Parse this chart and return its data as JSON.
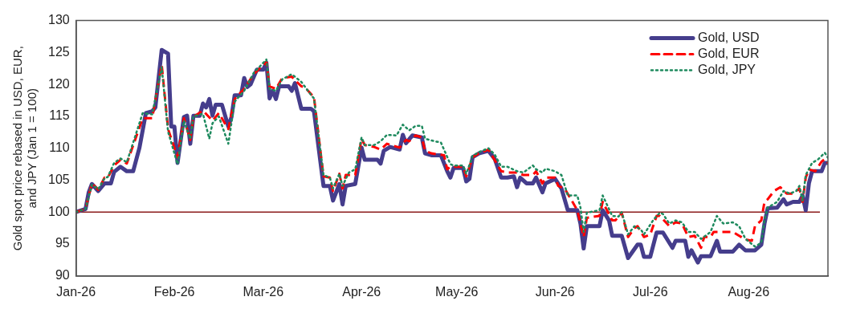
{
  "chart_data": {
    "type": "line",
    "ylabel": "Gold spot price rebased in USD, EUR, and JPY (Jan 1 = 100)",
    "xlim": [
      "2026-01-01",
      "2026-08-26"
    ],
    "xticks": [
      {
        "value": "2026-01-01",
        "label": "Jan-26"
      },
      {
        "value": "2026-02-01",
        "label": "Feb-26"
      },
      {
        "value": "2026-03-01",
        "label": "Mar-26"
      },
      {
        "value": "2026-04-01",
        "label": "Apr-26"
      },
      {
        "value": "2026-05-01",
        "label": "May-26"
      },
      {
        "value": "2026-06-01",
        "label": "Jun-26"
      },
      {
        "value": "2026-07-01",
        "label": "Jul-26"
      },
      {
        "value": "2026-08-01",
        "label": "Aug-26"
      }
    ],
    "ylim": [
      90,
      130
    ],
    "yticks": [
      90,
      95,
      100,
      105,
      110,
      115,
      120,
      125,
      130
    ],
    "grid": false,
    "legend": "top right",
    "ref_lines": [
      {
        "axis": "y",
        "value": 100,
        "color": "#8b1a1a"
      }
    ],
    "series": [
      {
        "name": "Gold, USD",
        "color": "#453d8c",
        "line_style": "solid",
        "x": [
          "2026-01-01",
          "2026-01-04",
          "2026-01-05",
          "2026-01-06",
          "2026-01-08",
          "2026-01-10",
          "2026-01-12",
          "2026-01-13",
          "2026-01-15",
          "2026-01-17",
          "2026-01-19",
          "2026-01-21",
          "2026-01-23",
          "2026-01-25",
          "2026-01-26",
          "2026-01-28",
          "2026-01-30",
          "2026-01-31",
          "2026-02-01",
          "2026-02-02",
          "2026-02-04",
          "2026-02-05",
          "2026-02-06",
          "2026-02-07",
          "2026-02-09",
          "2026-02-10",
          "2026-02-11",
          "2026-02-12",
          "2026-02-13",
          "2026-02-14",
          "2026-02-16",
          "2026-02-18",
          "2026-02-19",
          "2026-02-20",
          "2026-02-22",
          "2026-02-23",
          "2026-02-24",
          "2026-02-25",
          "2026-02-27",
          "2026-03-01",
          "2026-03-02",
          "2026-03-03",
          "2026-03-04",
          "2026-03-05",
          "2026-03-06",
          "2026-03-09",
          "2026-03-10",
          "2026-03-11",
          "2026-03-13",
          "2026-03-16",
          "2026-03-17",
          "2026-03-20",
          "2026-03-22",
          "2026-03-23",
          "2026-03-25",
          "2026-03-26",
          "2026-03-27",
          "2026-03-30",
          "2026-04-01",
          "2026-04-02",
          "2026-04-06",
          "2026-04-07",
          "2026-04-08",
          "2026-04-10",
          "2026-04-13",
          "2026-04-14",
          "2026-04-15",
          "2026-04-17",
          "2026-04-20",
          "2026-04-21",
          "2026-04-23",
          "2026-04-26",
          "2026-04-28",
          "2026-04-29",
          "2026-04-30",
          "2026-05-03",
          "2026-05-04",
          "2026-05-05",
          "2026-05-06",
          "2026-05-08",
          "2026-05-11",
          "2026-05-13",
          "2026-05-15",
          "2026-05-17",
          "2026-05-19",
          "2026-05-20",
          "2026-05-21",
          "2026-05-23",
          "2026-05-25",
          "2026-05-26",
          "2026-05-28",
          "2026-05-29",
          "2026-06-01",
          "2026-06-03",
          "2026-06-05",
          "2026-06-08",
          "2026-06-09",
          "2026-06-10",
          "2026-06-11",
          "2026-06-15",
          "2026-06-16",
          "2026-06-18",
          "2026-06-19",
          "2026-06-22",
          "2026-06-24",
          "2026-06-27",
          "2026-06-28",
          "2026-06-29",
          "2026-07-01",
          "2026-07-03",
          "2026-07-05",
          "2026-07-08",
          "2026-07-09",
          "2026-07-12",
          "2026-07-13",
          "2026-07-14",
          "2026-07-16",
          "2026-07-17",
          "2026-07-20",
          "2026-07-22",
          "2026-07-23",
          "2026-07-27",
          "2026-07-29",
          "2026-07-31",
          "2026-08-03",
          "2026-08-05",
          "2026-08-06",
          "2026-08-07",
          "2026-08-10",
          "2026-08-12",
          "2026-08-13",
          "2026-08-15",
          "2026-08-17",
          "2026-08-18",
          "2026-08-19",
          "2026-08-20",
          "2026-08-21",
          "2026-08-24",
          "2026-08-25",
          "2026-08-26"
        ],
        "values": [
          100,
          100.5,
          103.1,
          104.4,
          103.3,
          104.5,
          104.5,
          106.3,
          107.1,
          106.4,
          106.4,
          110.1,
          115.5,
          115.8,
          116.4,
          125.4,
          124.8,
          113.4,
          113.4,
          107.7,
          114.9,
          115.1,
          110.7,
          115.1,
          115.1,
          117,
          116.4,
          117.7,
          115.1,
          116.8,
          116.8,
          113.4,
          114.9,
          118.3,
          118.3,
          121,
          119.6,
          120,
          122.3,
          122.3,
          123.4,
          117.8,
          119,
          117.7,
          119.7,
          119.7,
          119,
          120.2,
          116.2,
          116.2,
          115.8,
          104.1,
          104.1,
          101.8,
          104.4,
          101.2,
          104.1,
          104.4,
          110.1,
          108.2,
          108.2,
          107.6,
          109.6,
          110.2,
          109.8,
          112.1,
          110.8,
          112,
          111.7,
          109.2,
          108.9,
          108.9,
          106.4,
          105.4,
          106.9,
          106.9,
          104.8,
          105.2,
          108.6,
          109.2,
          109.6,
          108.3,
          105.4,
          105.4,
          105.6,
          103.9,
          105.4,
          104.5,
          104.5,
          105.4,
          103.1,
          104.5,
          105.2,
          103.7,
          100.3,
          100.3,
          98.2,
          94.3,
          97.8,
          97.8,
          100.3,
          98.7,
          96.3,
          96.3,
          92.8,
          94.9,
          94.9,
          93,
          93,
          96.8,
          96.8,
          94.4,
          95.5,
          95.5,
          93,
          94,
          92.1,
          93.1,
          93.1,
          95.5,
          93.8,
          93.8,
          94.9,
          94,
          94,
          94.9,
          98.2,
          100.6,
          100.7,
          102,
          101.2,
          101.6,
          101.6,
          102.6,
          100.3,
          104.5,
          106.4,
          106.4,
          107.7,
          107.7
        ]
      },
      {
        "name": "Gold, EUR",
        "color": "#ff0000",
        "line_style": "dashed",
        "x": [
          "2026-01-01",
          "2026-01-04",
          "2026-01-06",
          "2026-01-08",
          "2026-01-10",
          "2026-01-11",
          "2026-01-13",
          "2026-01-15",
          "2026-01-17",
          "2026-01-22",
          "2026-01-25",
          "2026-01-28",
          "2026-01-30",
          "2026-02-02",
          "2026-02-04",
          "2026-02-06",
          "2026-02-07",
          "2026-02-10",
          "2026-02-13",
          "2026-02-15",
          "2026-02-18",
          "2026-02-20",
          "2026-02-23",
          "2026-02-26",
          "2026-03-02",
          "2026-03-03",
          "2026-03-05",
          "2026-03-07",
          "2026-03-10",
          "2026-03-13",
          "2026-03-14",
          "2026-03-17",
          "2026-03-20",
          "2026-03-22",
          "2026-03-23",
          "2026-03-25",
          "2026-03-26",
          "2026-03-27",
          "2026-03-30",
          "2026-04-01",
          "2026-04-02",
          "2026-04-05",
          "2026-04-07",
          "2026-04-09",
          "2026-04-13",
          "2026-04-15",
          "2026-04-16",
          "2026-04-18",
          "2026-04-20",
          "2026-04-21",
          "2026-04-23",
          "2026-04-27",
          "2026-04-28",
          "2026-04-29",
          "2026-05-03",
          "2026-05-04",
          "2026-05-06",
          "2026-05-08",
          "2026-05-11",
          "2026-05-15",
          "2026-05-17",
          "2026-05-20",
          "2026-05-22",
          "2026-05-25",
          "2026-05-26",
          "2026-05-28",
          "2026-05-29",
          "2026-06-01",
          "2026-06-02",
          "2026-06-04",
          "2026-06-06",
          "2026-06-08",
          "2026-06-10",
          "2026-06-11",
          "2026-06-15",
          "2026-06-16",
          "2026-06-19",
          "2026-06-20",
          "2026-06-22",
          "2026-06-24",
          "2026-06-26",
          "2026-06-27",
          "2026-06-29",
          "2026-07-01",
          "2026-07-03",
          "2026-07-04",
          "2026-07-07",
          "2026-07-09",
          "2026-07-11",
          "2026-07-13",
          "2026-07-15",
          "2026-07-17",
          "2026-07-18",
          "2026-07-20",
          "2026-07-21",
          "2026-07-24",
          "2026-07-27",
          "2026-07-29",
          "2026-07-31",
          "2026-08-02",
          "2026-08-03",
          "2026-08-05",
          "2026-08-06",
          "2026-08-07",
          "2026-08-09",
          "2026-08-11",
          "2026-08-13",
          "2026-08-15",
          "2026-08-17",
          "2026-08-18",
          "2026-08-19",
          "2026-08-20",
          "2026-08-22",
          "2026-08-24",
          "2026-08-25",
          "2026-08-26"
        ],
        "values": [
          100,
          100.5,
          104.5,
          103.5,
          105.4,
          105.4,
          107.3,
          108.2,
          107.6,
          114.7,
          114.7,
          123.1,
          113,
          108.6,
          114.7,
          111.3,
          114.9,
          115.9,
          114.3,
          115.5,
          113,
          117.7,
          119.3,
          121.6,
          123.5,
          119.7,
          119.3,
          121,
          121.2,
          119.7,
          119.6,
          118,
          105.6,
          105.4,
          103.3,
          106,
          103.7,
          105.8,
          105.8,
          111.5,
          110.5,
          110.2,
          109.8,
          110.7,
          110.1,
          111.3,
          111.1,
          112,
          111.7,
          109.6,
          109.2,
          108.9,
          106.7,
          107.1,
          107.1,
          105.6,
          108.6,
          109.2,
          109.8,
          106.4,
          106.2,
          106.2,
          105.8,
          105.8,
          106.4,
          104.5,
          105.4,
          105.4,
          104.1,
          103.7,
          102,
          100.3,
          96.1,
          99.1,
          99.4,
          101.6,
          98.7,
          98.7,
          99.9,
          96.1,
          97.5,
          97.8,
          96.1,
          96.5,
          99.4,
          99.4,
          97.8,
          98.4,
          98.2,
          96.1,
          96.3,
          94.4,
          96.1,
          96.1,
          96.9,
          96.9,
          96.9,
          96.3,
          95.7,
          95.5,
          97.8,
          98.7,
          101.6,
          102,
          103.3,
          103.9,
          102.9,
          102.9,
          103.7,
          101.6,
          105.4,
          106.7,
          106.4,
          107.9,
          108.3,
          107.7
        ]
      },
      {
        "name": "Gold, JPY",
        "color": "#1e8a5e",
        "line_style": "dotted",
        "x": [
          "2026-01-01",
          "2026-01-04",
          "2026-01-06",
          "2026-01-08",
          "2026-01-10",
          "2026-01-11",
          "2026-01-13",
          "2026-01-15",
          "2026-01-17",
          "2026-01-22",
          "2026-01-25",
          "2026-01-28",
          "2026-01-30",
          "2026-02-02",
          "2026-02-04",
          "2026-02-06",
          "2026-02-07",
          "2026-02-10",
          "2026-02-12",
          "2026-02-13",
          "2026-02-15",
          "2026-02-18",
          "2026-02-20",
          "2026-02-23",
          "2026-02-26",
          "2026-03-02",
          "2026-03-03",
          "2026-03-05",
          "2026-03-07",
          "2026-03-10",
          "2026-03-13",
          "2026-03-16",
          "2026-03-17",
          "2026-03-20",
          "2026-03-22",
          "2026-03-23",
          "2026-03-25",
          "2026-03-26",
          "2026-03-28",
          "2026-03-30",
          "2026-04-01",
          "2026-04-02",
          "2026-04-05",
          "2026-04-07",
          "2026-04-09",
          "2026-04-12",
          "2026-04-14",
          "2026-04-16",
          "2026-04-18",
          "2026-04-20",
          "2026-04-21",
          "2026-04-24",
          "2026-04-26",
          "2026-04-29",
          "2026-04-30",
          "2026-05-03",
          "2026-05-04",
          "2026-05-06",
          "2026-05-08",
          "2026-05-11",
          "2026-05-13",
          "2026-05-15",
          "2026-05-17",
          "2026-05-20",
          "2026-05-22",
          "2026-05-25",
          "2026-05-26",
          "2026-05-28",
          "2026-05-29",
          "2026-06-01",
          "2026-06-03",
          "2026-06-05",
          "2026-06-08",
          "2026-06-09",
          "2026-06-10",
          "2026-06-11",
          "2026-06-15",
          "2026-06-16",
          "2026-06-19",
          "2026-06-21",
          "2026-06-22",
          "2026-06-24",
          "2026-06-26",
          "2026-06-28",
          "2026-06-29",
          "2026-07-02",
          "2026-07-04",
          "2026-07-05",
          "2026-07-07",
          "2026-07-09",
          "2026-07-11",
          "2026-07-13",
          "2026-07-15",
          "2026-07-17",
          "2026-07-19",
          "2026-07-20",
          "2026-07-22",
          "2026-07-24",
          "2026-07-27",
          "2026-07-29",
          "2026-07-31",
          "2026-08-03",
          "2026-08-05",
          "2026-08-06",
          "2026-08-07",
          "2026-08-10",
          "2026-08-12",
          "2026-08-14",
          "2026-08-16",
          "2026-08-17",
          "2026-08-18",
          "2026-08-19",
          "2026-08-21",
          "2026-08-23",
          "2026-08-25",
          "2026-08-26"
        ],
        "values": [
          100,
          100.5,
          104.3,
          103.6,
          105.3,
          105.5,
          107.7,
          108.4,
          107.8,
          115.5,
          115.3,
          122.7,
          112.6,
          107.5,
          114.3,
          111.5,
          115,
          115.4,
          111.5,
          113.9,
          115,
          110.7,
          117.3,
          119,
          121.8,
          123.9,
          119.3,
          119,
          120.8,
          121.6,
          120.4,
          118.4,
          117.8,
          105.8,
          105.4,
          103.7,
          106,
          104.1,
          106.2,
          106.7,
          111.7,
          110.5,
          110.5,
          111.1,
          112.1,
          112,
          113.7,
          112.8,
          113.5,
          113.5,
          111.5,
          111.1,
          110.9,
          107.5,
          107.3,
          107.3,
          106,
          108.8,
          109.4,
          110,
          109,
          107.1,
          107.1,
          106.4,
          106.2,
          107.3,
          106.7,
          106.2,
          106.8,
          106.4,
          105.8,
          102.6,
          102.6,
          100.7,
          96.9,
          99.9,
          100.3,
          102.6,
          99.4,
          99.3,
          100,
          96.5,
          97.8,
          97.3,
          96.5,
          98.8,
          99.9,
          99.7,
          98.2,
          98.7,
          98.4,
          96.9,
          96.9,
          95.8,
          96.5,
          96.9,
          99.4,
          98.2,
          98.4,
          97.8,
          95.8,
          94.6,
          95.2,
          98.7,
          100.7,
          101.6,
          103.3,
          102.9,
          103.3,
          104.1,
          101.8,
          105.8,
          107.7,
          108.3,
          109.3,
          108.5
        ]
      }
    ]
  }
}
